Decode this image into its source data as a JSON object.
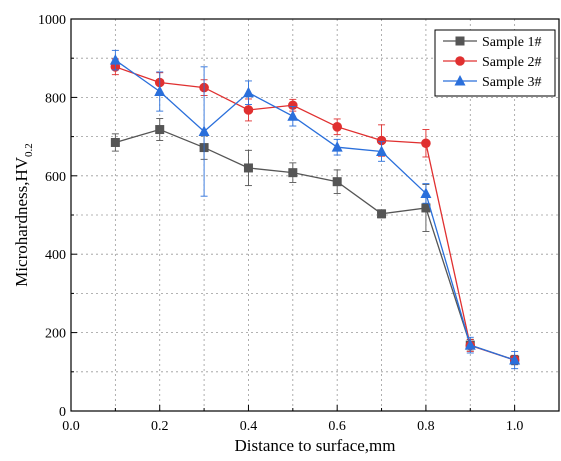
{
  "chart_data": {
    "type": "line",
    "xlabel": "Distance to surface,mm",
    "ylabel_main": "Microhardness,HV",
    "ylabel_sub": "0.2",
    "xlim": [
      0.0,
      1.1
    ],
    "ylim": [
      0,
      1000
    ],
    "x_ticks": [
      "0.0",
      "0.2",
      "0.4",
      "0.6",
      "0.8",
      "1.0"
    ],
    "y_ticks": [
      "0",
      "200",
      "400",
      "600",
      "800",
      "1000"
    ],
    "grid": true,
    "legend_position": "top-right",
    "series": [
      {
        "name": "Sample 1#",
        "color": "#555555",
        "marker": "square",
        "x": [
          0.1,
          0.2,
          0.3,
          0.4,
          0.5,
          0.6,
          0.7,
          0.8,
          0.9,
          1.0
        ],
        "y": [
          685,
          718,
          672,
          620,
          608,
          585,
          503,
          518,
          168,
          130
        ],
        "err": [
          22,
          28,
          30,
          45,
          25,
          30,
          10,
          60,
          15,
          12
        ]
      },
      {
        "name": "Sample 2#",
        "color": "#e03030",
        "marker": "circle",
        "x": [
          0.1,
          0.2,
          0.3,
          0.4,
          0.5,
          0.6,
          0.7,
          0.8,
          0.9,
          1.0
        ],
        "y": [
          878,
          838,
          825,
          768,
          780,
          725,
          690,
          683,
          167,
          130
        ],
        "err": [
          20,
          25,
          20,
          28,
          15,
          20,
          40,
          35,
          15,
          10
        ]
      },
      {
        "name": "Sample 3#",
        "color": "#2a6fdb",
        "marker": "triangle",
        "x": [
          0.1,
          0.2,
          0.3,
          0.4,
          0.5,
          0.6,
          0.7,
          0.8,
          0.9,
          1.0
        ],
        "y": [
          895,
          815,
          713,
          812,
          752,
          673,
          662,
          555,
          168,
          130
        ],
        "err": [
          25,
          50,
          165,
          30,
          25,
          20,
          25,
          25,
          20,
          22
        ]
      }
    ]
  }
}
